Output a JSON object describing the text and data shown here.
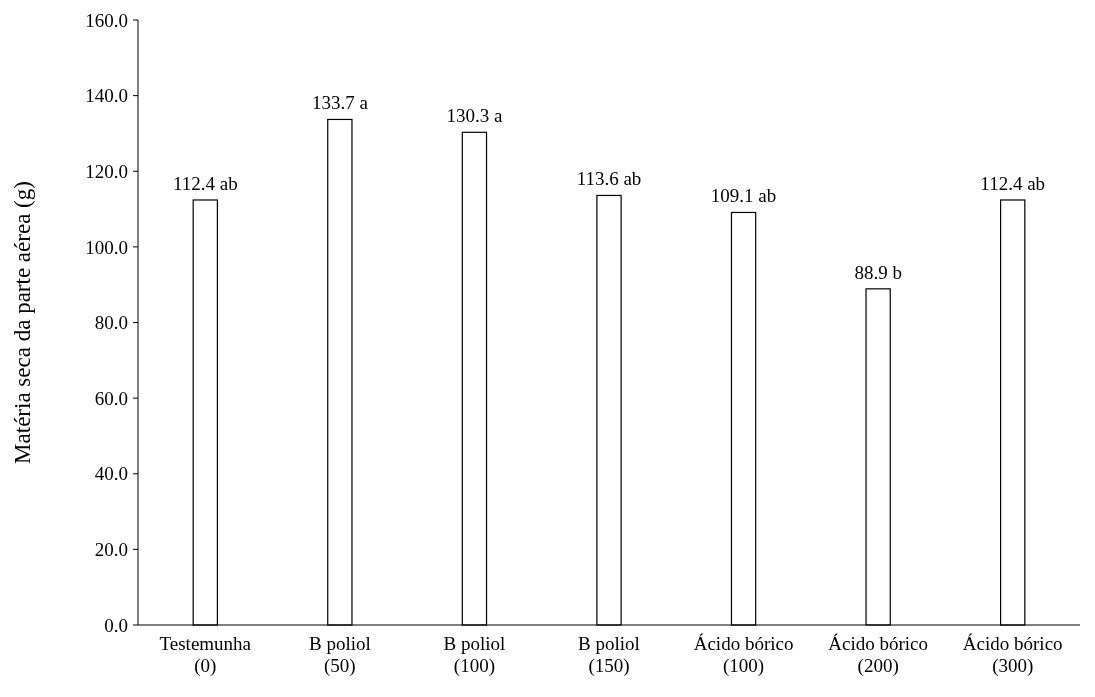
{
  "chart_data": {
    "type": "bar",
    "ylabel": "Matéria  seca da parte aérea (g)",
    "categories": [
      "Testemunha\n(0)",
      "B poliol\n(50)",
      "B poliol\n(100)",
      "B poliol\n(150)",
      "Ácido bórico\n(100)",
      "Ácido bórico\n(200)",
      "Ácido bórico\n(300)"
    ],
    "values": [
      112.4,
      133.7,
      130.3,
      113.6,
      109.1,
      88.9,
      112.4
    ],
    "value_labels": [
      "112.4 ab",
      "133.7 a",
      "130.3 a",
      "113.6 ab",
      "109.1 ab",
      "88.9 b",
      "112.4 ab"
    ],
    "color": "#ffffff",
    "ylim": [
      0,
      160
    ],
    "yticks": [
      {
        "value": 0,
        "label": "0.0"
      },
      {
        "value": 20,
        "label": "20.0"
      },
      {
        "value": 40,
        "label": "40.0"
      },
      {
        "value": 60,
        "label": "60.0"
      },
      {
        "value": 80,
        "label": "80.0"
      },
      {
        "value": 100,
        "label": "100.0"
      },
      {
        "value": 120,
        "label": "120.0"
      },
      {
        "value": 140,
        "label": "140.0"
      },
      {
        "value": 160,
        "label": "160.0"
      }
    ],
    "grid": false
  }
}
